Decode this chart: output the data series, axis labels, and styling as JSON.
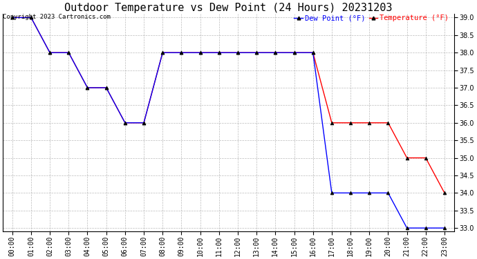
{
  "title": "Outdoor Temperature vs Dew Point (24 Hours) 20231203",
  "copyright_text": "Copyright 2023 Cartronics.com",
  "legend_dew": "Dew Point (°F)",
  "legend_temp": "Temperature (°F)",
  "x_labels": [
    "00:00",
    "01:00",
    "02:00",
    "03:00",
    "04:00",
    "05:00",
    "06:00",
    "07:00",
    "08:00",
    "09:00",
    "10:00",
    "11:00",
    "12:00",
    "13:00",
    "14:00",
    "15:00",
    "16:00",
    "17:00",
    "18:00",
    "19:00",
    "20:00",
    "21:00",
    "22:00",
    "23:00"
  ],
  "temperature": [
    39.0,
    39.0,
    38.0,
    38.0,
    37.0,
    37.0,
    36.0,
    36.0,
    38.0,
    38.0,
    38.0,
    38.0,
    38.0,
    38.0,
    38.0,
    38.0,
    38.0,
    36.0,
    36.0,
    36.0,
    36.0,
    35.0,
    35.0,
    34.0
  ],
  "dew_point": [
    39.0,
    39.0,
    38.0,
    38.0,
    37.0,
    37.0,
    36.0,
    36.0,
    38.0,
    38.0,
    38.0,
    38.0,
    38.0,
    38.0,
    38.0,
    38.0,
    38.0,
    34.0,
    34.0,
    34.0,
    34.0,
    33.0,
    33.0,
    33.0
  ],
  "temp_color": "#ff0000",
  "dew_color": "#0000ff",
  "ylim_min": 33.0,
  "ylim_max": 39.0,
  "yticks": [
    33.0,
    33.5,
    34.0,
    34.5,
    35.0,
    35.5,
    36.0,
    36.5,
    37.0,
    37.5,
    38.0,
    38.5,
    39.0
  ],
  "bg_color": "#ffffff",
  "grid_color": "#aaaaaa",
  "title_fontsize": 11,
  "tick_fontsize": 7,
  "copyright_fontsize": 6.5,
  "legend_fontsize": 7.5
}
